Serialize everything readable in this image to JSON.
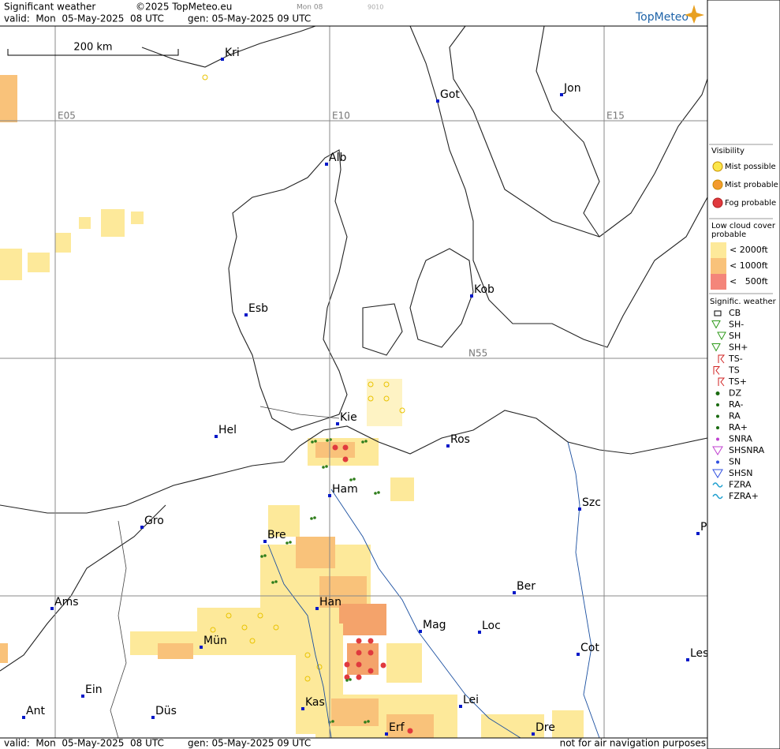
{
  "header": {
    "title": "Significant weather",
    "copyright": "©2025 TopMeteo.eu",
    "run": "Mon 08",
    "code": "9010",
    "valid": "valid:  Mon  05-May-2025  08 UTC",
    "gen": "gen: 05-May-2025 09 UTC",
    "logo": "TopMeteo"
  },
  "map": {
    "scale": "200 km",
    "grid_labels": [
      "E05",
      "E10",
      "E15",
      "N55"
    ],
    "cities": [
      "Kri",
      "Got",
      "Jon",
      "Alb",
      "Kob",
      "Esb",
      "Kie",
      "Hel",
      "Ros",
      "Ham",
      "Szc",
      "Gro",
      "Bre",
      "P",
      "Ber",
      "Ams",
      "Han",
      "Mag",
      "Loc",
      "Cot",
      "Les",
      "Mün",
      "Ein",
      "Lei",
      "Kas",
      "Ant",
      "Düs",
      "Dre",
      "Erf"
    ]
  },
  "footer": {
    "valid": "valid:  Mon  05-May-2025  08 UTC",
    "gen": "gen: 05-May-2025 09 UTC",
    "disclaimer": "not for air navigation purposes"
  },
  "legend": {
    "visibility": {
      "title": "Visibility",
      "items": [
        "Mist possible",
        "Mist probable",
        "Fog probable"
      ]
    },
    "cloud": {
      "title": "Low cloud cover probable",
      "items": [
        "< 2000ft",
        "< 1000ft",
        "<   500ft"
      ]
    },
    "weather": {
      "title": "Signific. weather",
      "items": [
        "CB",
        "SH-",
        "SH",
        "SH+",
        "TS-",
        "TS",
        "TS+",
        "DZ",
        "RA-",
        "RA",
        "RA+",
        "SNRA",
        "SHSNRA",
        "SN",
        "SHSN",
        "FZRA",
        "FZRA+"
      ]
    }
  }
}
